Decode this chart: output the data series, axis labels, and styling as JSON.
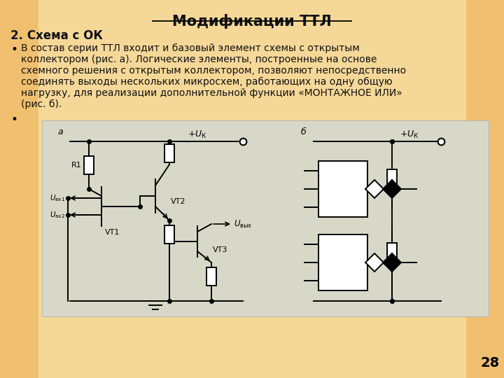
{
  "title": "Модификации ТТЛ",
  "subtitle": "2. Схема с ОК",
  "bullet1_line1": "В состав серии ТТЛ входит и базовый элемент схемы с открытым",
  "bullet1_line2": "коллектором (рис. а). Логические элементы, построенные на основе",
  "bullet1_line3": "схемного решения с открытым коллектором, позволяют непосредственно",
  "bullet1_line4": "соединять выходы нескольких микросхем, работающих на одну общую",
  "bullet1_line5": "нагрузку, для реализации дополнительной функции «МОНТАЖНОЕ ИЛИ»",
  "bullet1_line6": "(рис. б).",
  "page_number": "28",
  "bg_color": "#f0c070",
  "text_color": "#111111",
  "title_color": "#111111",
  "diagram_bg": "#d8d8c8",
  "lw": 1.4
}
